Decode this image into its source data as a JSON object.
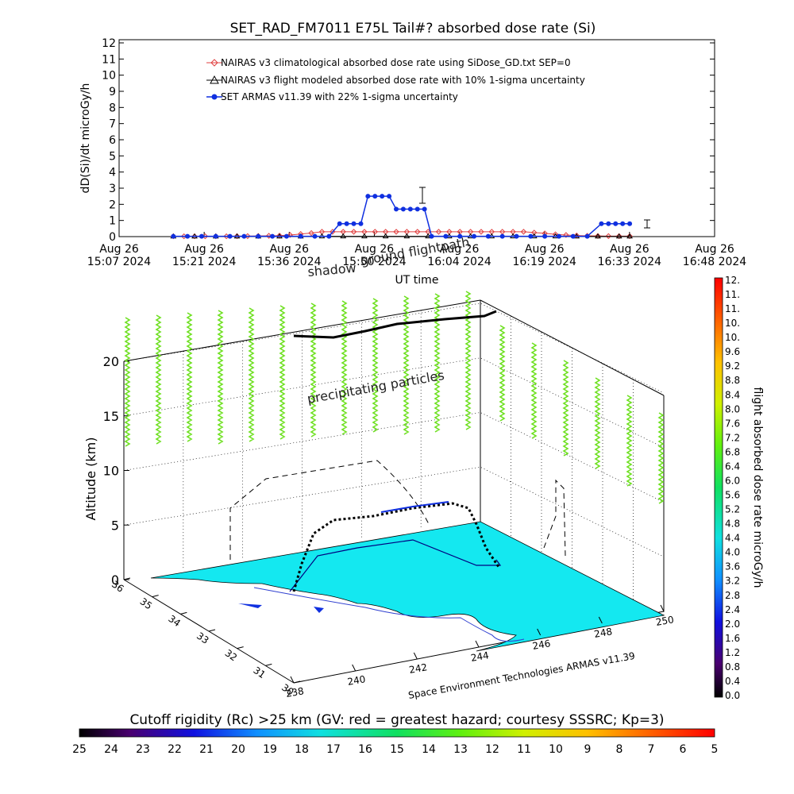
{
  "chart_data": [
    {
      "type": "line",
      "title": "SET_RAD_FM7011  E75L Tail#? absorbed dose rate (Si)",
      "xlabel": "UT time",
      "ylabel": "dD(Si)/dt microGy/h",
      "ylim": [
        0,
        12
      ],
      "y_ticks": [
        "0",
        "1",
        "2",
        "3",
        "4",
        "5",
        "6",
        "7",
        "8",
        "9",
        "10",
        "11",
        "12"
      ],
      "x_ticks": [
        {
          "date": "Aug 26",
          "time": "15:07 2024"
        },
        {
          "date": "Aug 26",
          "time": "15:21 2024"
        },
        {
          "date": "Aug 26",
          "time": "15:36 2024"
        },
        {
          "date": "Aug 26",
          "time": "15:50 2024"
        },
        {
          "date": "Aug 26",
          "time": "16:04 2024"
        },
        {
          "date": "Aug 26",
          "time": "16:19 2024"
        },
        {
          "date": "Aug 26",
          "time": "16:33 2024"
        },
        {
          "date": "Aug 26",
          "time": "16:48 2024"
        }
      ],
      "x_range": [
        "15:07",
        "16:48"
      ],
      "legend": [
        {
          "label": "NAIRAS v3 climatological absorbed dose rate using SiDose_GD.txt SEP=0",
          "color": "#e04040",
          "marker": "diamond"
        },
        {
          "label": "NAIRAS v3 flight modeled absorbed dose rate with 10% 1-sigma uncertainty",
          "color": "#000000",
          "marker": "triangle"
        },
        {
          "label": "SET ARMAS v11.39 with 22% 1-sigma uncertainty",
          "color": "#1030e0",
          "marker": "dot"
        }
      ],
      "legend_position": "top-center",
      "series": [
        {
          "name": "NAIRAS v3 climatological absorbed dose rate using SiDose_GD.txt SEP=0",
          "x": [
            15.27,
            15.3,
            15.33,
            15.36,
            15.39,
            15.42,
            15.45,
            15.48,
            15.51,
            15.54,
            15.57,
            15.6,
            15.63,
            15.66,
            15.69,
            15.72,
            15.75,
            15.78,
            15.81,
            15.84,
            15.87,
            15.9,
            15.93,
            15.96,
            15.99,
            16.02,
            16.05,
            16.08,
            16.11,
            16.14,
            16.17,
            16.2,
            16.23,
            16.26,
            16.29,
            16.32,
            16.35,
            16.38,
            16.41,
            16.44,
            16.47,
            16.5,
            16.53,
            16.56
          ],
          "values": [
            0.02,
            0.02,
            0.02,
            0.02,
            0.02,
            0.02,
            0.03,
            0.03,
            0.04,
            0.05,
            0.06,
            0.1,
            0.16,
            0.22,
            0.3,
            0.3,
            0.3,
            0.3,
            0.3,
            0.3,
            0.3,
            0.3,
            0.3,
            0.3,
            0.3,
            0.3,
            0.3,
            0.3,
            0.3,
            0.3,
            0.3,
            0.3,
            0.3,
            0.3,
            0.25,
            0.2,
            0.14,
            0.1,
            0.07,
            0.05,
            0.04,
            0.03,
            0.03,
            0.03
          ]
        },
        {
          "name": "NAIRAS v3 flight modeled absorbed dose rate with 10% 1-sigma uncertainty",
          "x": [
            15.27,
            15.33,
            15.39,
            15.45,
            15.51,
            15.57,
            15.63,
            15.69,
            15.75,
            15.81,
            15.87,
            15.93,
            15.99,
            16.05,
            16.11,
            16.17,
            16.23,
            16.29,
            16.35,
            16.41,
            16.47,
            16.53,
            16.56
          ],
          "values": [
            0.01,
            0.01,
            0.01,
            0.01,
            0.01,
            0.01,
            0.01,
            0.02,
            0.02,
            0.02,
            0.02,
            0.02,
            0.02,
            0.02,
            0.02,
            0.02,
            0.02,
            0.02,
            0.02,
            0.01,
            0.01,
            0.01,
            0.01
          ]
        },
        {
          "name": "SET ARMAS v11.39 with 22% 1-sigma uncertainty",
          "x": [
            15.27,
            15.31,
            15.35,
            15.39,
            15.43,
            15.47,
            15.51,
            15.55,
            15.59,
            15.63,
            15.67,
            15.71,
            15.74,
            15.76,
            15.78,
            15.8,
            15.82,
            15.84,
            15.86,
            15.88,
            15.9,
            15.92,
            15.94,
            15.96,
            15.98,
            16.0,
            16.04,
            16.08,
            16.12,
            16.16,
            16.2,
            16.24,
            16.28,
            16.32,
            16.36,
            16.4,
            16.44,
            16.48,
            16.5,
            16.52,
            16.54,
            16.56
          ],
          "values": [
            0.02,
            0.02,
            0.02,
            0.02,
            0.02,
            0.02,
            0.02,
            0.02,
            0.02,
            0.02,
            0.02,
            0.02,
            0.8,
            0.8,
            0.8,
            0.8,
            2.5,
            2.5,
            2.5,
            2.5,
            1.7,
            1.7,
            1.7,
            1.7,
            1.7,
            0.02,
            0.02,
            0.02,
            0.02,
            0.02,
            0.02,
            0.02,
            0.02,
            0.02,
            0.02,
            0.02,
            0.02,
            0.8,
            0.8,
            0.8,
            0.8,
            0.8
          ]
        }
      ]
    },
    {
      "type": "surface3d",
      "zlabel": "Altitude (km)",
      "z_ticks": [
        "0",
        "5",
        "10",
        "15",
        "20"
      ],
      "zlim": [
        0,
        22
      ],
      "lat_ticks": [
        "30",
        "31",
        "32",
        "33",
        "34",
        "35",
        "36"
      ],
      "lon_ticks": [
        "238",
        "240",
        "242",
        "244",
        "246",
        "248",
        "250"
      ],
      "credit": "Space Environment Technologies ARMAS v11.39",
      "annotations": [
        "shadow",
        "ground flightpath",
        "precipitating particles"
      ],
      "colorbar_right": {
        "label": "flight absorbed dose rate microGy/h",
        "ticks": [
          "0.0",
          "0.4",
          "0.8",
          "1.2",
          "1.6",
          "2.0",
          "2.4",
          "2.8",
          "3.2",
          "3.6",
          "4.0",
          "4.4",
          "4.8",
          "5.2",
          "5.6",
          "6.0",
          "6.4",
          "6.8",
          "7.2",
          "7.6",
          "8.0",
          "8.4",
          "8.8",
          "9.2",
          "9.6",
          "10.",
          "10.",
          "11.",
          "11.",
          "12."
        ]
      },
      "colorbar_bottom": {
        "label": "Cutoff rigidity (Rc) >25 km (GV: red = greatest hazard; courtesy SSSRC; Kp=3)",
        "ticks": [
          "25",
          "24",
          "23",
          "22",
          "21",
          "20",
          "19",
          "18",
          "17",
          "16",
          "15",
          "14",
          "13",
          "12",
          "11",
          "10",
          "9",
          "8",
          "7",
          "6",
          "5"
        ]
      }
    }
  ]
}
